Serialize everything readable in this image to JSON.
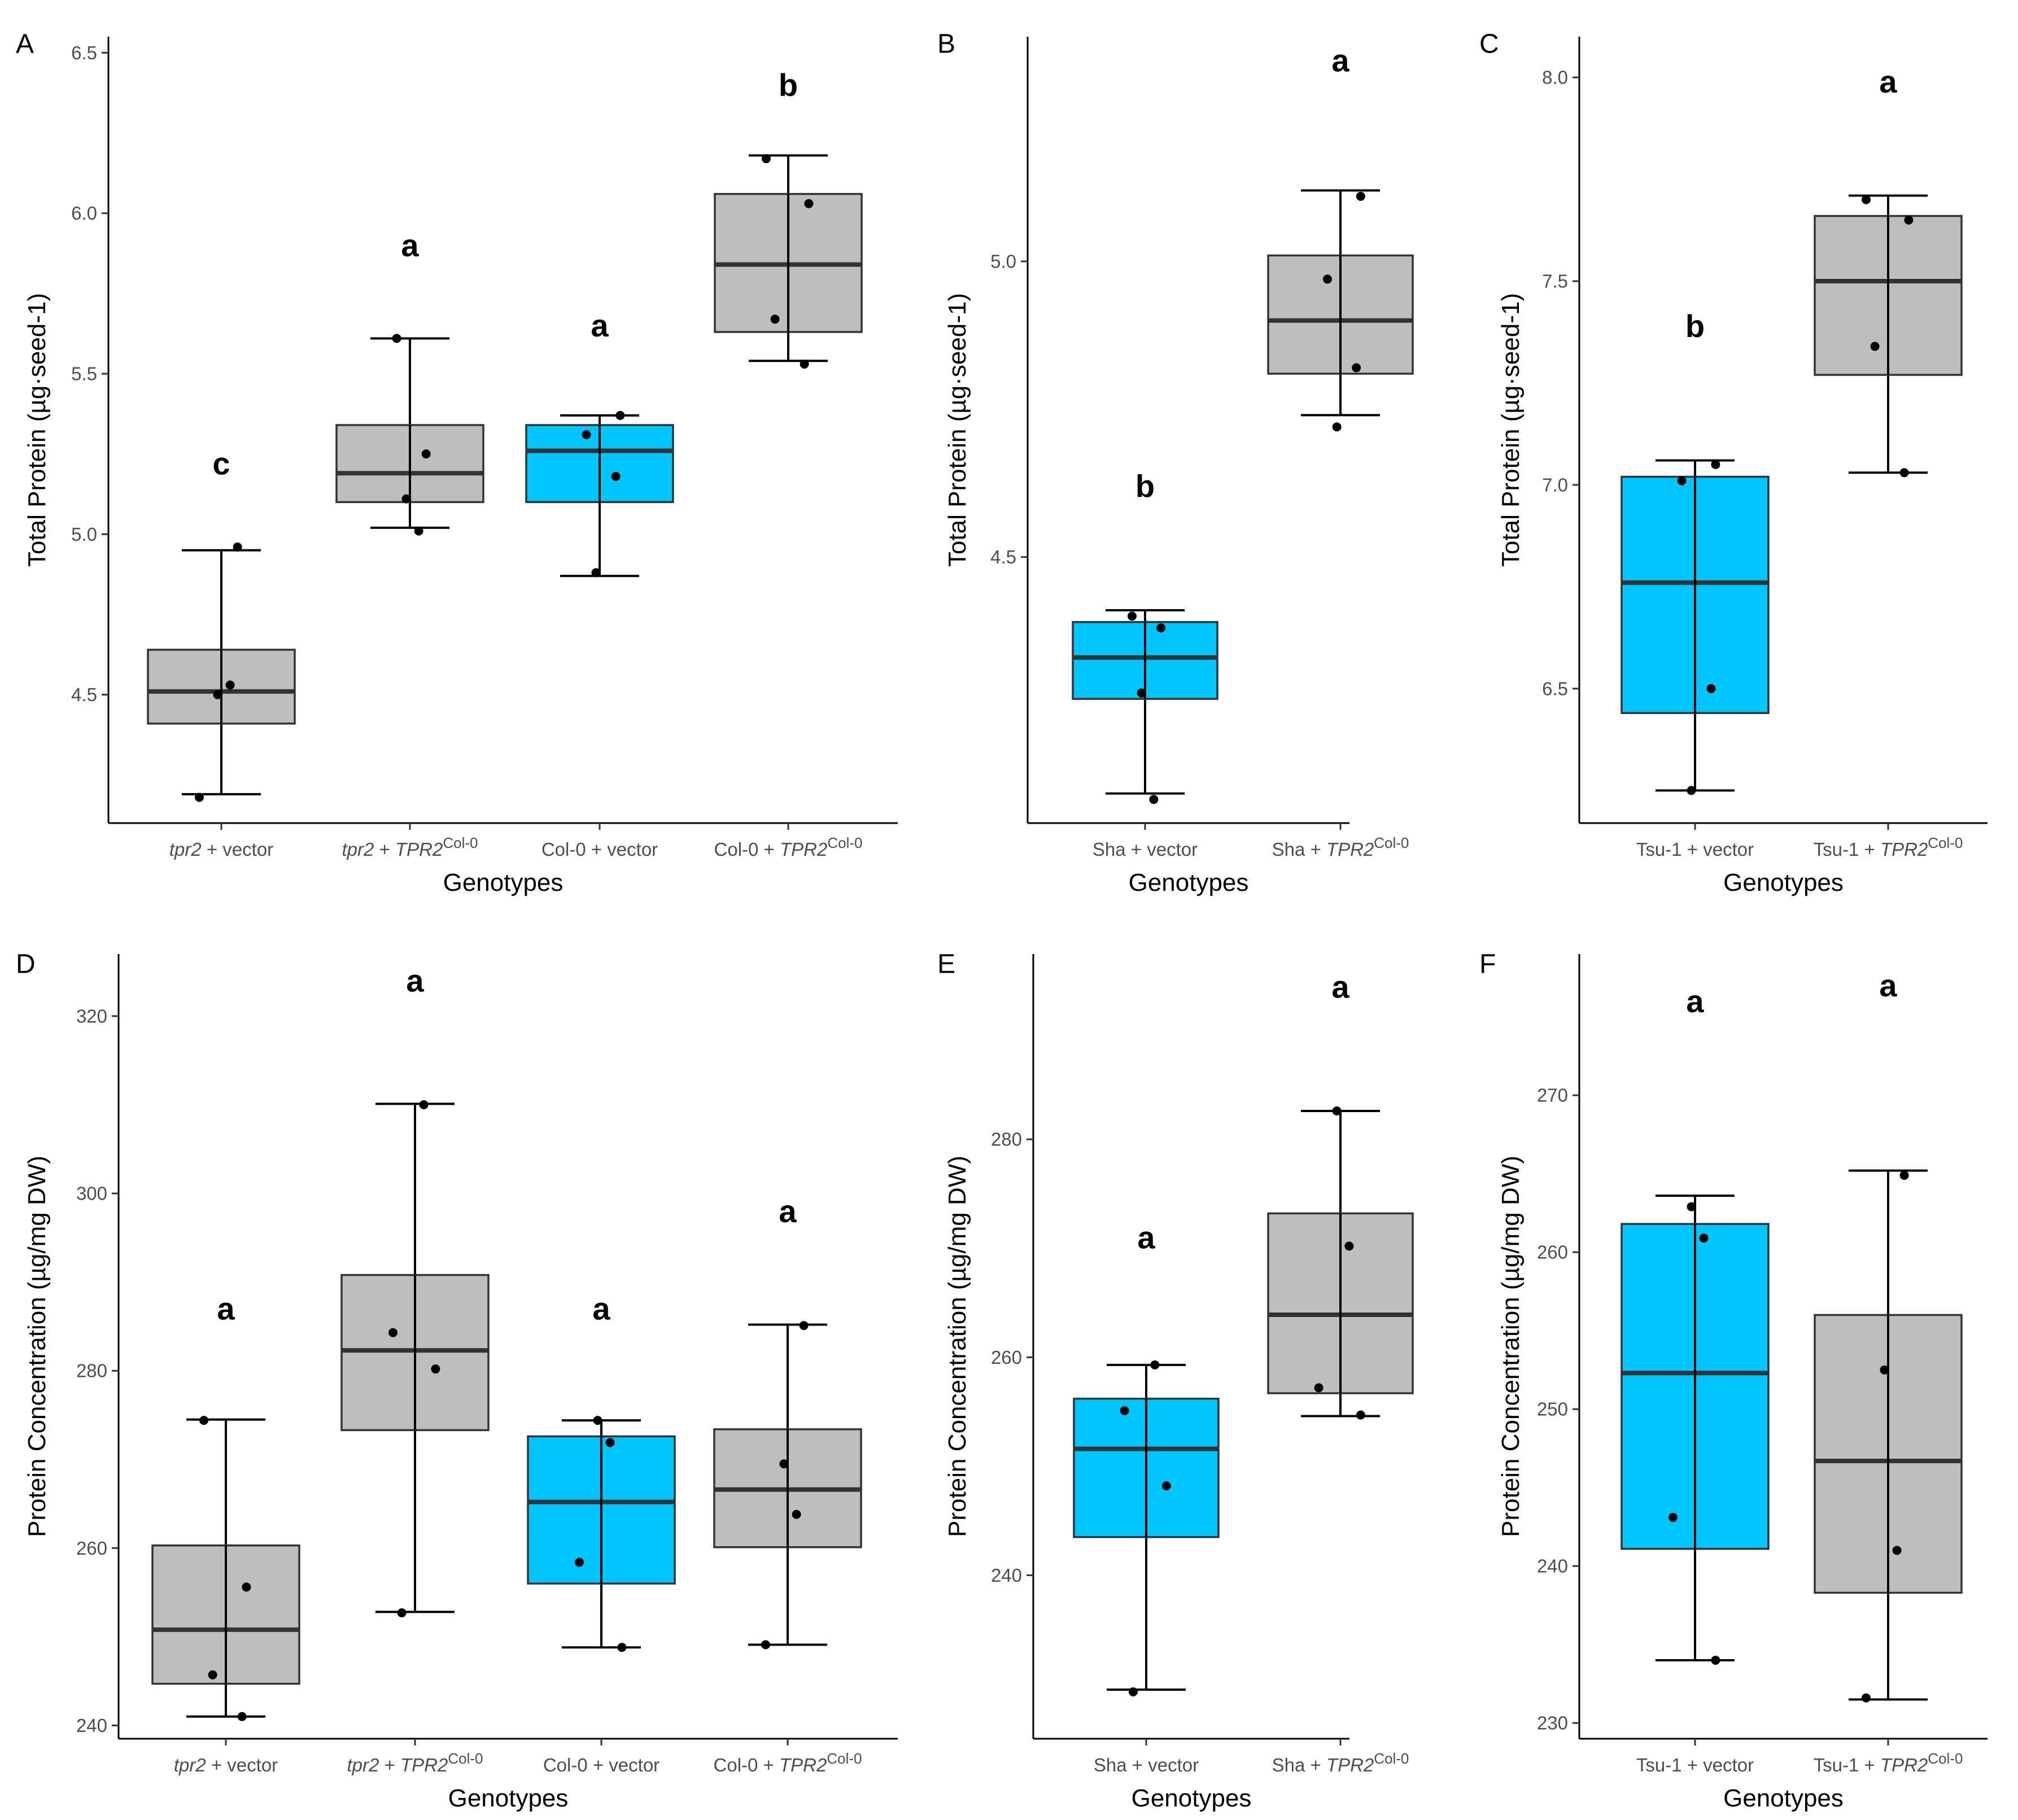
{
  "figure": {
    "colors": {
      "gray": "#bebebe",
      "cyan": "#00c5ff",
      "line": "#333333",
      "point": "#000000"
    }
  },
  "chart_data": [
    {
      "panel": "A",
      "type": "box",
      "ylabel": "Total Protein (µg·seed-1)",
      "xlabel": "Genotypes",
      "ylim": [
        4.1,
        6.55
      ],
      "yticks": [
        4.5,
        5.0,
        5.5,
        6.0,
        6.5
      ],
      "yticklabels": [
        "4.5",
        "5.0",
        "5.5",
        "6.0",
        "6.5"
      ],
      "categories": [
        {
          "label": [
            [
              "tpr2",
              "i"
            ],
            [
              " + vector",
              ""
            ]
          ],
          "color": "gray",
          "min": 4.19,
          "q1": 4.41,
          "median": 4.51,
          "q3": 4.64,
          "max": 4.95,
          "points": [
            4.18,
            4.53,
            4.5,
            4.96
          ],
          "letter": "c",
          "letter_y": 5.22
        },
        {
          "label": [
            [
              "tpr2",
              "i"
            ],
            [
              " + ",
              ""
            ],
            [
              "TPR2",
              "i"
            ],
            [
              "Col-0",
              "sup"
            ]
          ],
          "color": "gray",
          "min": 5.02,
          "q1": 5.1,
          "median": 5.19,
          "q3": 5.34,
          "max": 5.61,
          "points": [
            5.01,
            5.11,
            5.25,
            5.61
          ],
          "letter": "a",
          "letter_y": 5.9
        },
        {
          "label": [
            [
              "Col-0 + vector",
              ""
            ]
          ],
          "color": "cyan",
          "min": 4.87,
          "q1": 5.1,
          "median": 5.26,
          "q3": 5.34,
          "max": 5.37,
          "points": [
            4.88,
            5.18,
            5.31,
            5.37
          ],
          "letter": "a",
          "letter_y": 5.65
        },
        {
          "label": [
            [
              "Col-0 + ",
              ""
            ],
            [
              "TPR2",
              "i"
            ],
            [
              "Col-0",
              "sup"
            ]
          ],
          "color": "gray",
          "min": 5.54,
          "q1": 5.63,
          "median": 5.84,
          "q3": 6.06,
          "max": 6.18,
          "points": [
            5.53,
            5.67,
            6.03,
            6.17
          ],
          "letter": "b",
          "letter_y": 6.4
        }
      ]
    },
    {
      "panel": "B",
      "type": "box",
      "ylabel": "Total Protein (µg·seed-1)",
      "xlabel": "Genotypes",
      "ylim": [
        4.05,
        5.38
      ],
      "yticks": [
        4.5,
        5.0
      ],
      "yticklabels": [
        "4.5",
        "5.0"
      ],
      "categories": [
        {
          "label": [
            [
              "Sha + vector",
              ""
            ]
          ],
          "color": "cyan",
          "min": 4.1,
          "q1": 4.26,
          "median": 4.33,
          "q3": 4.39,
          "max": 4.41,
          "points": [
            4.09,
            4.27,
            4.38,
            4.4
          ],
          "letter": "b",
          "letter_y": 4.62
        },
        {
          "label": [
            [
              "Sha + ",
              ""
            ],
            [
              "TPR2",
              "i"
            ],
            [
              "Col-0",
              "sup"
            ]
          ],
          "color": "gray",
          "min": 4.74,
          "q1": 4.81,
          "median": 4.9,
          "q3": 5.01,
          "max": 5.12,
          "points": [
            4.72,
            4.82,
            4.97,
            5.11
          ],
          "letter": "a",
          "letter_y": 5.34
        }
      ]
    },
    {
      "panel": "C",
      "type": "box",
      "ylabel": "Total Protein (µg·seed-1)",
      "xlabel": "Genotypes",
      "ylim": [
        6.17,
        8.1
      ],
      "yticks": [
        6.5,
        7.0,
        7.5,
        8.0
      ],
      "yticklabels": [
        "6.5",
        "7.0",
        "7.5",
        "8.0"
      ],
      "categories": [
        {
          "label": [
            [
              "Tsu-1 + vector",
              ""
            ]
          ],
          "color": "cyan",
          "min": 6.25,
          "q1": 6.44,
          "median": 6.76,
          "q3": 7.02,
          "max": 7.06,
          "points": [
            6.25,
            6.5,
            7.01,
            7.05
          ],
          "letter": "b",
          "letter_y": 7.39
        },
        {
          "label": [
            [
              "Tsu-1 + ",
              ""
            ],
            [
              "TPR2",
              "i"
            ],
            [
              "Col-0",
              "sup"
            ]
          ],
          "color": "gray",
          "min": 7.03,
          "q1": 7.27,
          "median": 7.5,
          "q3": 7.66,
          "max": 7.71,
          "points": [
            7.03,
            7.34,
            7.65,
            7.7
          ],
          "letter": "a",
          "letter_y": 7.99
        }
      ]
    },
    {
      "panel": "D",
      "type": "box",
      "ylabel": "Protein Concentration (µg/mg DW)",
      "xlabel": "Genotypes",
      "ylim": [
        238.5,
        327
      ],
      "yticks": [
        240,
        260,
        280,
        300,
        320
      ],
      "yticklabels": [
        "240",
        "260",
        "280",
        "300",
        "320"
      ],
      "categories": [
        {
          "label": [
            [
              "tpr2",
              "i"
            ],
            [
              " + vector",
              ""
            ]
          ],
          "color": "gray",
          "min": 241.0,
          "q1": 244.7,
          "median": 250.8,
          "q3": 260.3,
          "max": 274.5,
          "points": [
            241.0,
            245.7,
            255.6,
            274.4
          ],
          "letter": "a",
          "letter_y": 287.0
        },
        {
          "label": [
            [
              "tpr2",
              "i"
            ],
            [
              " + ",
              ""
            ],
            [
              "TPR2",
              "i"
            ],
            [
              "Col-0",
              "sup"
            ]
          ],
          "color": "gray",
          "min": 252.8,
          "q1": 273.3,
          "median": 282.3,
          "q3": 290.8,
          "max": 310.1,
          "points": [
            252.7,
            280.2,
            284.3,
            310.0
          ],
          "letter": "a",
          "letter_y": 324.0
        },
        {
          "label": [
            [
              "Col-0 + vector",
              ""
            ]
          ],
          "color": "cyan",
          "min": 248.8,
          "q1": 256.0,
          "median": 265.2,
          "q3": 272.6,
          "max": 274.4,
          "points": [
            248.8,
            258.4,
            271.9,
            274.4
          ],
          "letter": "a",
          "letter_y": 287.0
        },
        {
          "label": [
            [
              "Col-0 + ",
              ""
            ],
            [
              "TPR2",
              "i"
            ],
            [
              "Col-0",
              "sup"
            ]
          ],
          "color": "gray",
          "min": 249.1,
          "q1": 260.1,
          "median": 266.6,
          "q3": 273.4,
          "max": 285.2,
          "points": [
            249.1,
            263.8,
            269.5,
            285.1
          ],
          "letter": "a",
          "letter_y": 298.0
        }
      ]
    },
    {
      "panel": "E",
      "type": "box",
      "ylabel": "Protein Concentration (µg/mg DW)",
      "xlabel": "Genotypes",
      "ylim": [
        225,
        297
      ],
      "yticks": [
        240,
        260,
        280
      ],
      "yticklabels": [
        "240",
        "260",
        "280"
      ],
      "categories": [
        {
          "label": [
            [
              "Sha + vector",
              ""
            ]
          ],
          "color": "cyan",
          "min": 229.5,
          "q1": 243.5,
          "median": 251.6,
          "q3": 256.2,
          "max": 259.3,
          "points": [
            229.3,
            248.2,
            255.1,
            259.3
          ],
          "letter": "a",
          "letter_y": 271.0
        },
        {
          "label": [
            [
              "Sha + ",
              ""
            ],
            [
              "TPR2",
              "i"
            ],
            [
              "Col-0",
              "sup"
            ]
          ],
          "color": "gray",
          "min": 254.6,
          "q1": 256.7,
          "median": 263.9,
          "q3": 273.2,
          "max": 282.6,
          "points": [
            254.7,
            257.2,
            270.2,
            282.6
          ],
          "letter": "a",
          "letter_y": 294.0
        }
      ]
    },
    {
      "panel": "F",
      "type": "box",
      "ylabel": "Protein Concentration (µg/mg DW)",
      "xlabel": "Genotypes",
      "ylim": [
        229,
        279
      ],
      "yticks": [
        230,
        240,
        250,
        260,
        270
      ],
      "yticklabels": [
        "230",
        "240",
        "250",
        "260",
        "270"
      ],
      "categories": [
        {
          "label": [
            [
              "Tsu-1 + vector",
              ""
            ]
          ],
          "color": "cyan",
          "min": 234.0,
          "q1": 241.1,
          "median": 252.3,
          "q3": 261.8,
          "max": 263.6,
          "points": [
            234.0,
            243.1,
            260.9,
            262.9
          ],
          "letter": "a",
          "letter_y": 276.0
        },
        {
          "label": [
            [
              "Tsu-1 + ",
              ""
            ],
            [
              "TPR2",
              "i"
            ],
            [
              "Col-0",
              "sup"
            ]
          ],
          "color": "gray",
          "min": 231.5,
          "q1": 238.3,
          "median": 246.7,
          "q3": 256.0,
          "max": 265.2,
          "points": [
            231.6,
            241.0,
            252.5,
            264.9
          ],
          "letter": "a",
          "letter_y": 277.0
        }
      ]
    }
  ]
}
